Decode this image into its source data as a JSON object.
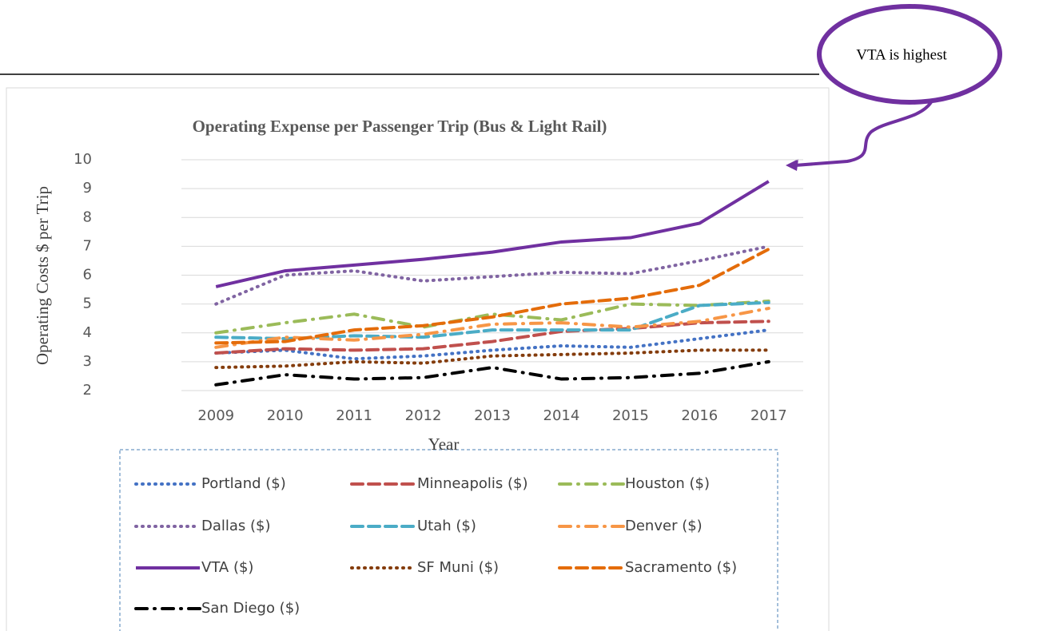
{
  "chart_data": {
    "type": "line",
    "title": "Operating Expense per Passenger Trip (Bus & Light Rail)",
    "x_label": "Year",
    "y_label": "Operating Costs $ per Trip",
    "annotation": "VTA is highest",
    "categories": [
      "2009",
      "2010",
      "2011",
      "2012",
      "2013",
      "2014",
      "2015",
      "2016",
      "2017"
    ],
    "ylim": [
      2,
      10
    ],
    "yticks": [
      2,
      3,
      4,
      5,
      6,
      7,
      8,
      9,
      10
    ],
    "grid": true,
    "series": [
      {
        "name": "Portland ($)",
        "color": "#4472c4",
        "style": "dotted",
        "values": [
          3.3,
          3.4,
          3.1,
          3.2,
          3.4,
          3.55,
          3.5,
          3.8,
          4.1
        ]
      },
      {
        "name": "Minneapolis ($)",
        "color": "#c0504d",
        "style": "dashed",
        "values": [
          3.3,
          3.45,
          3.4,
          3.45,
          3.7,
          4.05,
          4.15,
          4.35,
          4.4
        ]
      },
      {
        "name": "Houston ($)",
        "color": "#9bbb59",
        "style": "dashdot",
        "values": [
          4.0,
          4.35,
          4.65,
          4.2,
          4.65,
          4.45,
          5.0,
          4.95,
          5.1
        ]
      },
      {
        "name": "Dallas ($)",
        "color": "#8064a2",
        "style": "dotted",
        "values": [
          5.0,
          6.0,
          6.15,
          5.8,
          5.95,
          6.1,
          6.05,
          6.5,
          7.0
        ]
      },
      {
        "name": "Utah ($)",
        "color": "#4bacc6",
        "style": "dashed",
        "values": [
          3.85,
          3.8,
          3.9,
          3.85,
          4.1,
          4.1,
          4.1,
          4.95,
          5.05
        ]
      },
      {
        "name": "Denver ($)",
        "color": "#f79646",
        "style": "dashdot",
        "values": [
          3.5,
          3.85,
          3.75,
          3.95,
          4.3,
          4.35,
          4.2,
          4.4,
          4.85
        ]
      },
      {
        "name": "VTA ($)",
        "color": "#7030a0",
        "style": "solid",
        "values": [
          5.6,
          6.15,
          6.35,
          6.55,
          6.8,
          7.15,
          7.3,
          7.8,
          9.25
        ]
      },
      {
        "name": "SF Muni ($)",
        "color": "#843c0c",
        "style": "dotted",
        "values": [
          2.8,
          2.85,
          3.0,
          2.95,
          3.2,
          3.25,
          3.3,
          3.4,
          3.4
        ]
      },
      {
        "name": "Sacramento ($)",
        "color": "#e46c0a",
        "style": "dashed",
        "values": [
          3.65,
          3.7,
          4.1,
          4.25,
          4.55,
          5.0,
          5.2,
          5.65,
          6.9
        ]
      },
      {
        "name": "San Diego ($)",
        "color": "#000000",
        "style": "dashdot",
        "values": [
          2.2,
          2.55,
          2.4,
          2.45,
          2.8,
          2.4,
          2.45,
          2.6,
          3.0
        ]
      }
    ]
  }
}
